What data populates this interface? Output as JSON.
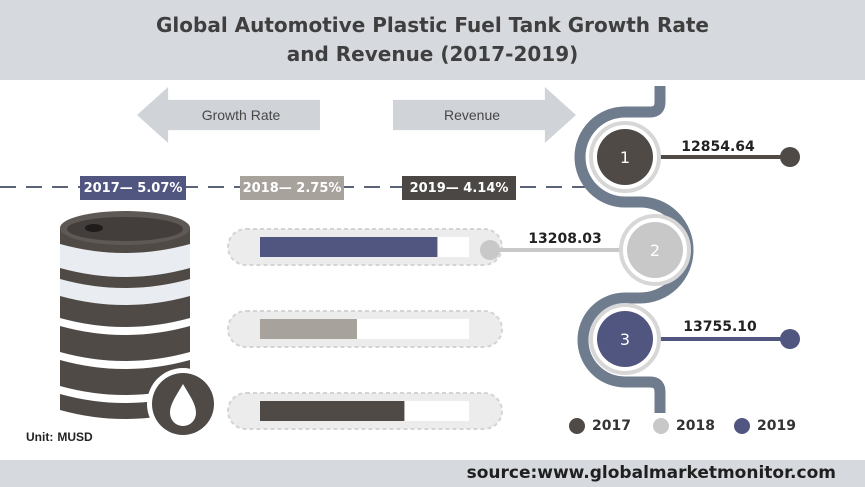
{
  "title": {
    "line1": "Global Automotive Plastic Fuel Tank Growth Rate",
    "line2": "and Revenue (2017-2019)"
  },
  "arrows": {
    "left_label": "Growth Rate",
    "right_label": "Revenue"
  },
  "unit": {
    "label": "Unit:",
    "value": "MUSD"
  },
  "source": "source:www.globalmarketmonitor.com",
  "legend": [
    {
      "label": "2017",
      "color": "#504a47"
    },
    {
      "label": "2018",
      "color": "#c8c8c8"
    },
    {
      "label": "2019",
      "color": "#515681"
    }
  ],
  "growth_tags": [
    {
      "text": "2017— 5.07%",
      "color": "#515681"
    },
    {
      "text": "2018— 2.75%",
      "color": "#a8a29c"
    },
    {
      "text": "2019— 4.14%",
      "color": "#4b4744"
    }
  ],
  "icons": {
    "barrel": "oil-barrel-icon",
    "drop": "oil-drop-icon"
  },
  "chart_data": {
    "type": "bar",
    "categories": [
      "2017",
      "2018",
      "2019"
    ],
    "series": [
      {
        "name": "Revenue",
        "values": [
          12854.64,
          13208.03,
          13755.1
        ]
      },
      {
        "name": "Growth Rate",
        "values": [
          5.07,
          2.75,
          4.14
        ]
      }
    ],
    "revenue_labels": [
      "12854.64",
      "13208.03",
      "13755.10"
    ],
    "circle_numbers": [
      "1",
      "2",
      "3"
    ],
    "colors": [
      "#504a47",
      "#c8c8c8",
      "#515681"
    ],
    "bar_colors": [
      "#515681",
      "#a8a29c",
      "#504a47"
    ],
    "bar_fill_fractions": [
      0.849,
      0.464,
      0.691
    ]
  }
}
